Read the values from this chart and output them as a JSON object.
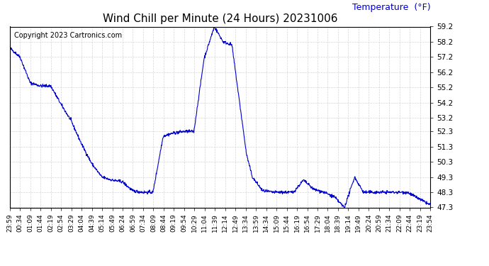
{
  "title": "Wind Chill per Minute (24 Hours) 20231006",
  "ylabel": "Temperature  (°F)",
  "copyright_text": "Copyright 2023 Cartronics.com",
  "line_color": "#0000cc",
  "ylabel_color": "#0000cc",
  "background_color": "#ffffff",
  "grid_color": "#cccccc",
  "ylim": [
    47.3,
    59.2
  ],
  "yticks": [
    47.3,
    48.3,
    49.3,
    50.3,
    51.3,
    52.3,
    53.2,
    54.2,
    55.2,
    56.2,
    57.2,
    58.2,
    59.2
  ],
  "xtick_labels": [
    "23:59",
    "00:34",
    "01:09",
    "01:44",
    "02:19",
    "02:54",
    "03:29",
    "04:04",
    "04:39",
    "05:14",
    "05:49",
    "06:24",
    "06:59",
    "07:34",
    "08:09",
    "08:44",
    "09:19",
    "09:54",
    "10:29",
    "11:04",
    "11:39",
    "12:14",
    "12:49",
    "13:34",
    "13:59",
    "14:34",
    "15:09",
    "15:44",
    "16:19",
    "16:54",
    "17:29",
    "18:04",
    "18:39",
    "19:14",
    "19:49",
    "20:24",
    "20:59",
    "21:34",
    "22:09",
    "22:44",
    "23:19",
    "23:54"
  ],
  "key_x": [
    0,
    35,
    70,
    105,
    140,
    175,
    210,
    245,
    280,
    315,
    350,
    385,
    420,
    455,
    490,
    525,
    560,
    595,
    630,
    665,
    700,
    730,
    760,
    810,
    830,
    865,
    900,
    935,
    970,
    1005,
    1040,
    1075,
    1110,
    1145,
    1180,
    1210,
    1240,
    1270,
    1300,
    1330,
    1360,
    1435
  ],
  "key_y": [
    57.8,
    57.2,
    55.5,
    55.3,
    55.3,
    54.1,
    53.0,
    51.5,
    50.2,
    49.3,
    49.1,
    49.0,
    48.4,
    48.3,
    48.3,
    52.0,
    52.2,
    52.3,
    52.3,
    57.1,
    59.2,
    58.2,
    58.0,
    50.8,
    49.3,
    48.4,
    48.3,
    48.3,
    48.3,
    49.1,
    48.5,
    48.3,
    48.0,
    47.3,
    49.3,
    48.3,
    48.3,
    48.3,
    48.3,
    48.3,
    48.3,
    47.5
  ]
}
